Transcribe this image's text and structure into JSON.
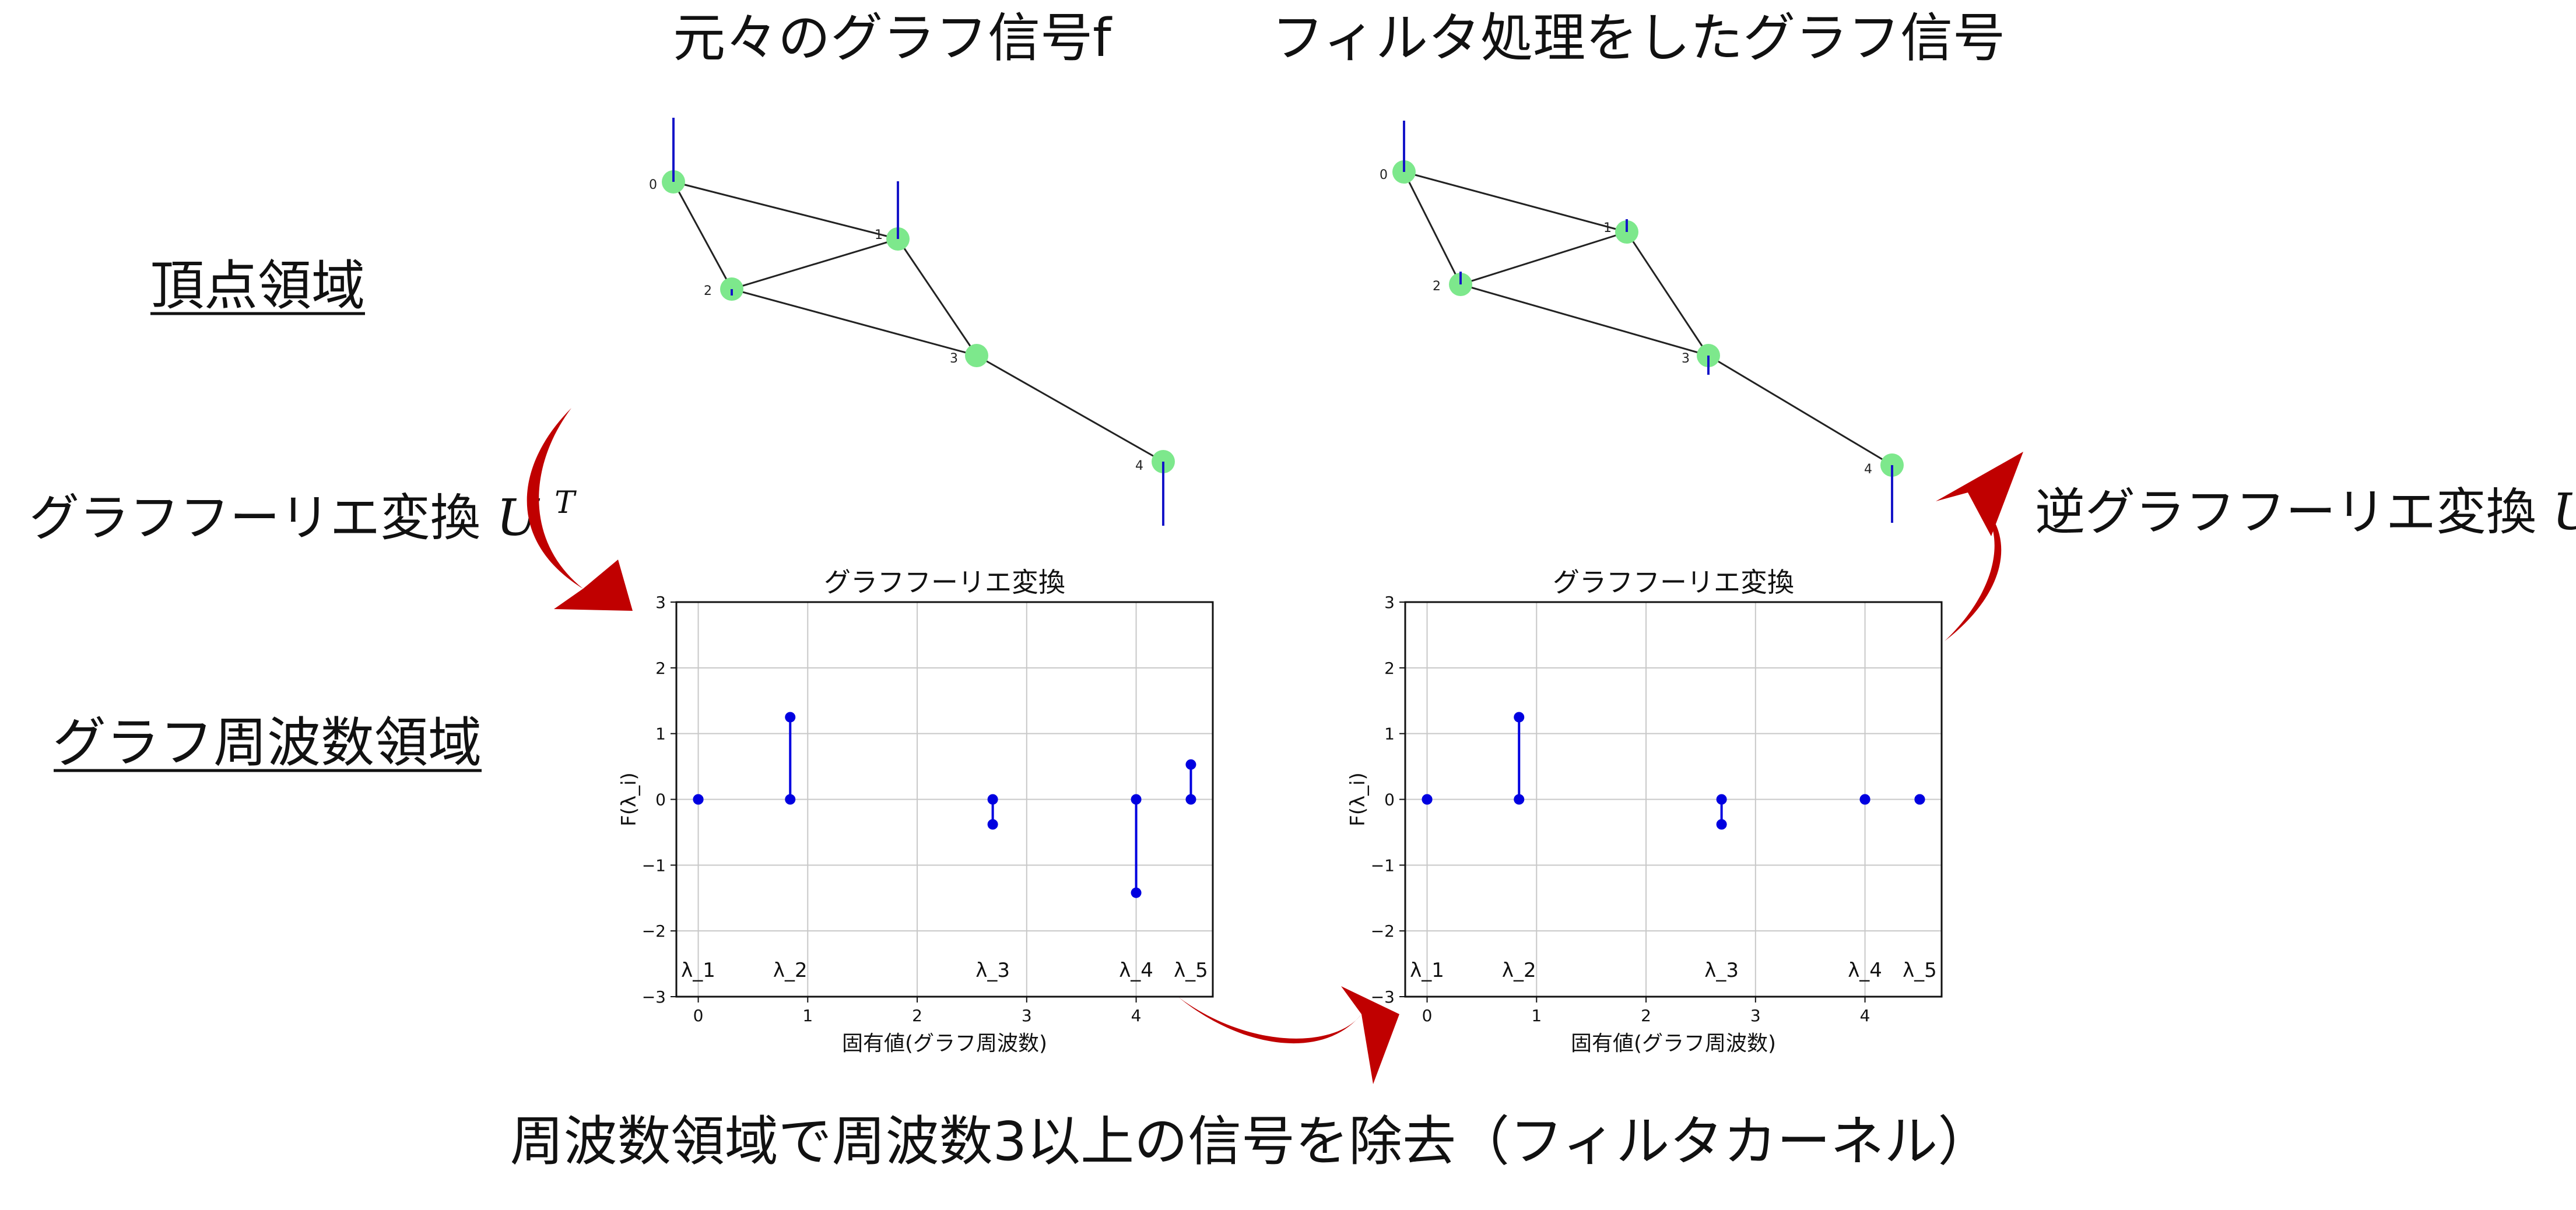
{
  "top_titles": {
    "original": "元々のグラフ信号f",
    "filtered": "フィルタ処理をしたグラフ信号"
  },
  "row_labels": {
    "vertex_domain": "頂点領域",
    "frequency_domain": "グラフ周波数領域"
  },
  "transform_labels": {
    "forward_text": "グラフフーリエ変換",
    "forward_math": "U",
    "forward_sup": "T",
    "inverse_text": "逆グラフフーリエ変換",
    "inverse_math": "U"
  },
  "bottom_caption": "周波数領域で周波数3以上の信号を除去（フィルタカーネル）",
  "colors": {
    "arrow": "#c00000",
    "node": "#7de88c",
    "edge": "#222222",
    "signal": "#1515c8",
    "stem": "#0000e0",
    "grid": "#c8c8c8"
  },
  "graph": {
    "edges": [
      [
        0,
        1
      ],
      [
        0,
        2
      ],
      [
        1,
        2
      ],
      [
        1,
        3
      ],
      [
        2,
        3
      ],
      [
        3,
        4
      ]
    ],
    "node_labels": [
      "0",
      "1",
      "2",
      "3",
      "4"
    ],
    "original_signal": [
      1.0,
      0.9,
      -0.1,
      0.0,
      -1.0
    ],
    "filtered_signal": [
      0.8,
      0.2,
      0.2,
      -0.3,
      -0.9
    ]
  },
  "chart_data": [
    {
      "type": "stem",
      "title": "グラフフーリエ変換",
      "xlabel": "固有値(グラフ周波数)",
      "ylabel": "F(λ_i)",
      "xlim": [
        -0.2,
        4.7
      ],
      "ylim": [
        -3,
        3
      ],
      "xticks": [
        "0",
        "1",
        "2",
        "3",
        "4"
      ],
      "yticks": [
        "3",
        "2",
        "1",
        "0",
        "−1",
        "−2",
        "−3"
      ],
      "grid": true,
      "x": [
        0,
        0.84,
        2.69,
        4.0,
        4.5
      ],
      "values": [
        0.0,
        1.25,
        -0.38,
        -1.42,
        0.53
      ],
      "point_labels": [
        "λ_1",
        "λ_2",
        "λ_3",
        "λ_4",
        "λ_5"
      ]
    },
    {
      "type": "stem",
      "title": "グラフフーリエ変換",
      "xlabel": "固有値(グラフ周波数)",
      "ylabel": "F(λ_i)",
      "xlim": [
        -0.2,
        4.7
      ],
      "ylim": [
        -3,
        3
      ],
      "xticks": [
        "0",
        "1",
        "2",
        "3",
        "4"
      ],
      "yticks": [
        "3",
        "2",
        "1",
        "0",
        "−1",
        "−2",
        "−3"
      ],
      "grid": true,
      "x": [
        0,
        0.84,
        2.69,
        4.0,
        4.5
      ],
      "values": [
        0.0,
        1.25,
        -0.38,
        0.0,
        0.0
      ],
      "point_labels": [
        "λ_1",
        "λ_2",
        "λ_3",
        "λ_4",
        "λ_5"
      ]
    }
  ]
}
